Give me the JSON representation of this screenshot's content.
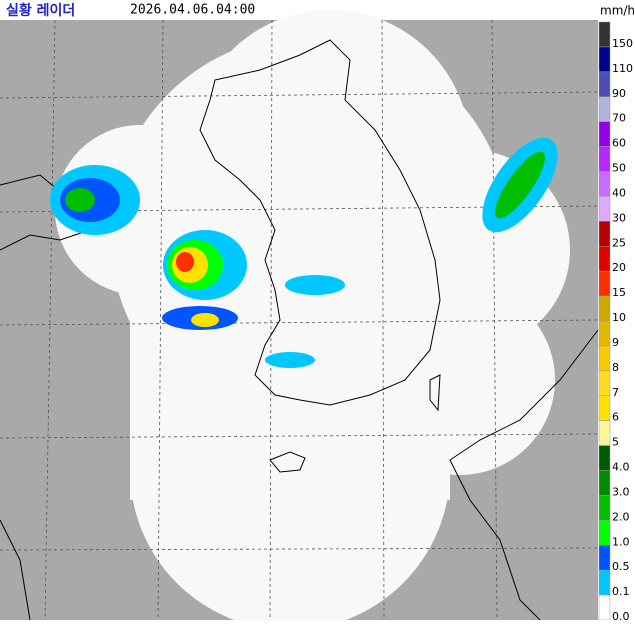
{
  "header": {
    "title": "실황 레이더",
    "timestamp": "2026.04.06.04:00",
    "unit": "mm/h"
  },
  "legend": [
    {
      "label": "150",
      "color": "#333333"
    },
    {
      "label": "110",
      "color": "#000390"
    },
    {
      "label": "90",
      "color": "#4c4eb1"
    },
    {
      "label": "70",
      "color": "#b3b4de"
    },
    {
      "label": "60",
      "color": "#9300e4"
    },
    {
      "label": "50",
      "color": "#b329ff"
    },
    {
      "label": "40",
      "color": "#c96bff"
    },
    {
      "label": "30",
      "color": "#dfa9ff"
    },
    {
      "label": "25",
      "color": "#b40000"
    },
    {
      "label": "20",
      "color": "#e00000"
    },
    {
      "label": "15",
      "color": "#ff3000"
    },
    {
      "label": "10",
      "color": "#ccaa00"
    },
    {
      "label": "9",
      "color": "#e0b900"
    },
    {
      "label": "8",
      "color": "#f9cb00"
    },
    {
      "label": "7",
      "color": "#ffdc1f"
    },
    {
      "label": "6",
      "color": "#ffe100"
    },
    {
      "label": "5",
      "color": "#fff69c"
    },
    {
      "label": "4.0",
      "color": "#005a00"
    },
    {
      "label": "3.0",
      "color": "#008c00"
    },
    {
      "label": "2.0",
      "color": "#00be00"
    },
    {
      "label": "1.0",
      "color": "#00ff00"
    },
    {
      "label": "0.5",
      "color": "#0055ff"
    },
    {
      "label": "0.1",
      "color": "#00c8ff"
    },
    {
      "label": "0.0",
      "color": "#ffffff"
    }
  ]
}
